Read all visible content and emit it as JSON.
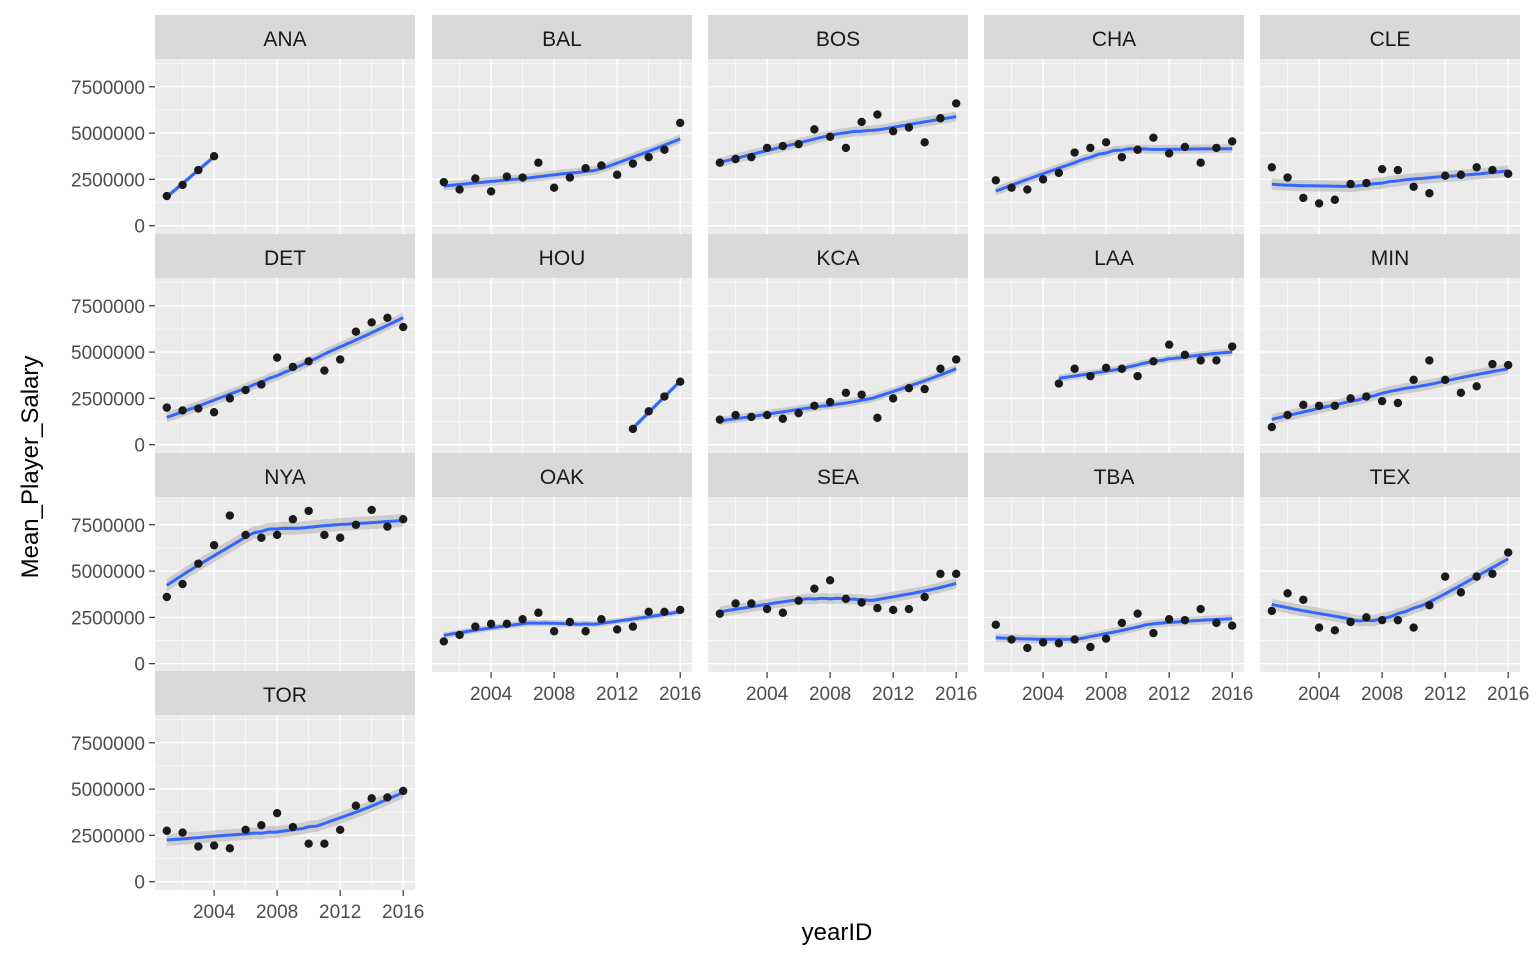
{
  "chart_data": {
    "type": "scatter",
    "subtype": "faceted scatter with loess smooth and confidence band",
    "xlabel": "yearID",
    "ylabel": "Mean_Player_Salary",
    "xlim": [
      2001,
      2016
    ],
    "ylim": [
      0,
      9000000
    ],
    "x_ticks": [
      2004,
      2008,
      2012,
      2016
    ],
    "y_ticks": [
      0,
      2500000,
      5000000,
      7500000
    ],
    "y_tick_labels": [
      "0",
      "2500000",
      "5000000",
      "7500000"
    ],
    "layout": {
      "columns": 5,
      "rows": 4
    },
    "colors": {
      "panel_bg": "#ebebeb",
      "strip_bg": "#d9d9d9",
      "grid": "#ffffff",
      "point": "#1a1a1a",
      "smooth": "#3366ff",
      "band": "#b3b3b3"
    },
    "facets": [
      {
        "name": "ANA",
        "x": [
          2001,
          2002,
          2003,
          2004
        ],
        "y": [
          1600000,
          2200000,
          3000000,
          3750000
        ]
      },
      {
        "name": "BAL",
        "x": [
          2001,
          2002,
          2003,
          2004,
          2005,
          2006,
          2007,
          2008,
          2009,
          2010,
          2011,
          2012,
          2013,
          2014,
          2015,
          2016
        ],
        "y": [
          2350000,
          1950000,
          2550000,
          1850000,
          2650000,
          2600000,
          3400000,
          2050000,
          2600000,
          3100000,
          3250000,
          2750000,
          3350000,
          3700000,
          4100000,
          5550000
        ]
      },
      {
        "name": "BOS",
        "x": [
          2001,
          2002,
          2003,
          2004,
          2005,
          2006,
          2007,
          2008,
          2009,
          2010,
          2011,
          2012,
          2013,
          2014,
          2015,
          2016
        ],
        "y": [
          3400000,
          3600000,
          3700000,
          4200000,
          4300000,
          4400000,
          5200000,
          4800000,
          4200000,
          5600000,
          6000000,
          5100000,
          5300000,
          4500000,
          5800000,
          6600000
        ]
      },
      {
        "name": "CHA",
        "x": [
          2001,
          2002,
          2003,
          2004,
          2005,
          2006,
          2007,
          2008,
          2009,
          2010,
          2011,
          2012,
          2013,
          2014,
          2015,
          2016
        ],
        "y": [
          2450000,
          2050000,
          1950000,
          2500000,
          2850000,
          3950000,
          4200000,
          4500000,
          3700000,
          4100000,
          4750000,
          3900000,
          4250000,
          3400000,
          4200000,
          4550000
        ]
      },
      {
        "name": "CLE",
        "x": [
          2001,
          2002,
          2003,
          2004,
          2005,
          2006,
          2007,
          2008,
          2009,
          2010,
          2011,
          2012,
          2013,
          2014,
          2015,
          2016
        ],
        "y": [
          3150000,
          2600000,
          1500000,
          1200000,
          1400000,
          2250000,
          2300000,
          3050000,
          3000000,
          2100000,
          1750000,
          2700000,
          2750000,
          3150000,
          3000000,
          2800000
        ]
      },
      {
        "name": "DET",
        "x": [
          2001,
          2002,
          2003,
          2004,
          2005,
          2006,
          2007,
          2008,
          2009,
          2010,
          2011,
          2012,
          2013,
          2014,
          2015,
          2016
        ],
        "y": [
          2000000,
          1850000,
          1950000,
          1750000,
          2500000,
          2950000,
          3250000,
          4700000,
          4200000,
          4500000,
          4000000,
          4600000,
          6100000,
          6600000,
          6850000,
          6350000
        ]
      },
      {
        "name": "HOU",
        "x": [
          2013,
          2014,
          2015,
          2016
        ],
        "y": [
          850000,
          1800000,
          2600000,
          3400000
        ]
      },
      {
        "name": "KCA",
        "x": [
          2001,
          2002,
          2003,
          2004,
          2005,
          2006,
          2007,
          2008,
          2009,
          2010,
          2011,
          2012,
          2013,
          2014,
          2015,
          2016
        ],
        "y": [
          1350000,
          1600000,
          1500000,
          1600000,
          1400000,
          1700000,
          2100000,
          2300000,
          2800000,
          2700000,
          1450000,
          2500000,
          3050000,
          3000000,
          4100000,
          4600000
        ]
      },
      {
        "name": "LAA",
        "x": [
          2005,
          2006,
          2007,
          2008,
          2009,
          2010,
          2011,
          2012,
          2013,
          2014,
          2015,
          2016
        ],
        "y": [
          3300000,
          4100000,
          3700000,
          4150000,
          4100000,
          3700000,
          4500000,
          5400000,
          4850000,
          4550000,
          4550000,
          5300000
        ]
      },
      {
        "name": "MIN",
        "x": [
          2001,
          2002,
          2003,
          2004,
          2005,
          2006,
          2007,
          2008,
          2009,
          2010,
          2011,
          2012,
          2013,
          2014,
          2015,
          2016
        ],
        "y": [
          950000,
          1600000,
          2150000,
          2100000,
          2100000,
          2500000,
          2600000,
          2350000,
          2250000,
          3500000,
          4550000,
          3500000,
          2800000,
          3150000,
          4350000,
          4300000
        ]
      },
      {
        "name": "NYA",
        "x": [
          2001,
          2002,
          2003,
          2004,
          2005,
          2006,
          2007,
          2008,
          2009,
          2010,
          2011,
          2012,
          2013,
          2014,
          2015,
          2016
        ],
        "y": [
          3600000,
          4300000,
          5400000,
          6400000,
          8000000,
          6950000,
          6800000,
          6950000,
          7800000,
          8250000,
          6950000,
          6800000,
          7500000,
          8300000,
          7400000,
          7800000
        ]
      },
      {
        "name": "OAK",
        "x": [
          2001,
          2002,
          2003,
          2004,
          2005,
          2006,
          2007,
          2008,
          2009,
          2010,
          2011,
          2012,
          2013,
          2014,
          2015,
          2016
        ],
        "y": [
          1200000,
          1550000,
          2000000,
          2150000,
          2150000,
          2400000,
          2750000,
          1750000,
          2250000,
          1750000,
          2400000,
          1850000,
          2000000,
          2800000,
          2800000,
          2900000
        ]
      },
      {
        "name": "SEA",
        "x": [
          2001,
          2002,
          2003,
          2004,
          2005,
          2006,
          2007,
          2008,
          2009,
          2010,
          2011,
          2012,
          2013,
          2014,
          2015,
          2016
        ],
        "y": [
          2700000,
          3250000,
          3250000,
          2950000,
          2750000,
          3400000,
          4050000,
          4500000,
          3500000,
          3300000,
          3000000,
          2900000,
          2950000,
          3600000,
          4850000,
          4850000
        ]
      },
      {
        "name": "TBA",
        "x": [
          2001,
          2002,
          2003,
          2004,
          2005,
          2006,
          2007,
          2008,
          2009,
          2010,
          2011,
          2012,
          2013,
          2014,
          2015,
          2016
        ],
        "y": [
          2100000,
          1300000,
          850000,
          1150000,
          1100000,
          1300000,
          900000,
          1350000,
          2200000,
          2700000,
          1650000,
          2400000,
          2350000,
          2950000,
          2200000,
          2050000
        ]
      },
      {
        "name": "TEX",
        "x": [
          2001,
          2002,
          2003,
          2004,
          2005,
          2006,
          2007,
          2008,
          2009,
          2010,
          2011,
          2012,
          2013,
          2014,
          2015,
          2016
        ],
        "y": [
          2850000,
          3800000,
          3450000,
          1950000,
          1800000,
          2250000,
          2500000,
          2350000,
          2350000,
          1950000,
          3150000,
          4700000,
          3850000,
          4700000,
          4850000,
          6000000
        ]
      },
      {
        "name": "TOR",
        "x": [
          2001,
          2002,
          2003,
          2004,
          2005,
          2006,
          2007,
          2008,
          2009,
          2010,
          2011,
          2012,
          2013,
          2014,
          2015,
          2016
        ],
        "y": [
          2750000,
          2650000,
          1900000,
          1950000,
          1800000,
          2800000,
          3050000,
          3700000,
          2950000,
          2050000,
          2050000,
          2800000,
          4100000,
          4500000,
          4550000,
          4900000
        ]
      }
    ]
  }
}
